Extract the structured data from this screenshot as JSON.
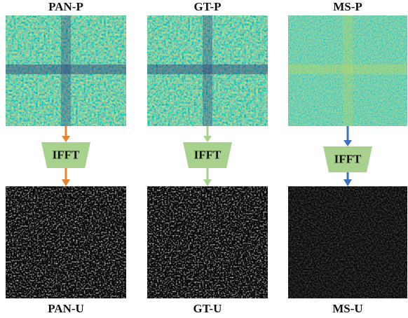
{
  "columns": [
    {
      "top_label": "PAN-P",
      "op": "IFFT",
      "bottom_label": "PAN-U",
      "arrow_color": "#e8822e"
    },
    {
      "top_label": "GT-P",
      "op": "IFFT",
      "bottom_label": "GT-U",
      "arrow_color": "#a8d08d"
    },
    {
      "top_label": "MS-P",
      "op": "IFFT",
      "bottom_label": "MS-U",
      "arrow_color": "#3b72c0"
    }
  ]
}
